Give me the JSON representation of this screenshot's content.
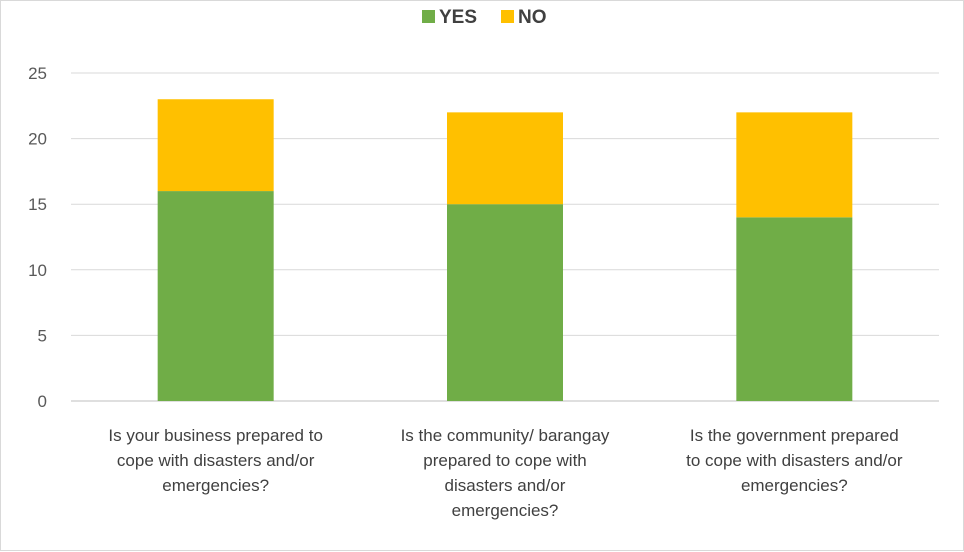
{
  "chart_data": {
    "type": "bar",
    "stacked": true,
    "categories": [
      [
        "Is your business prepared to",
        "cope with disasters and/or",
        "emergencies?"
      ],
      [
        "Is the community/ barangay",
        "prepared to cope with",
        "disasters and/or",
        "emergencies?"
      ],
      [
        "Is the government prepared",
        "to cope with disasters and/or",
        "emergencies?"
      ]
    ],
    "series": [
      {
        "name": "YES",
        "color": "#70ad47",
        "values": [
          16,
          15,
          14
        ]
      },
      {
        "name": "NO",
        "color": "#ffc000",
        "values": [
          7,
          7,
          8
        ]
      }
    ],
    "ylim": [
      0,
      25
    ],
    "yticks": [
      "0",
      "5",
      "10",
      "15",
      "20",
      "25"
    ],
    "grid": true,
    "legend": "top-center"
  }
}
